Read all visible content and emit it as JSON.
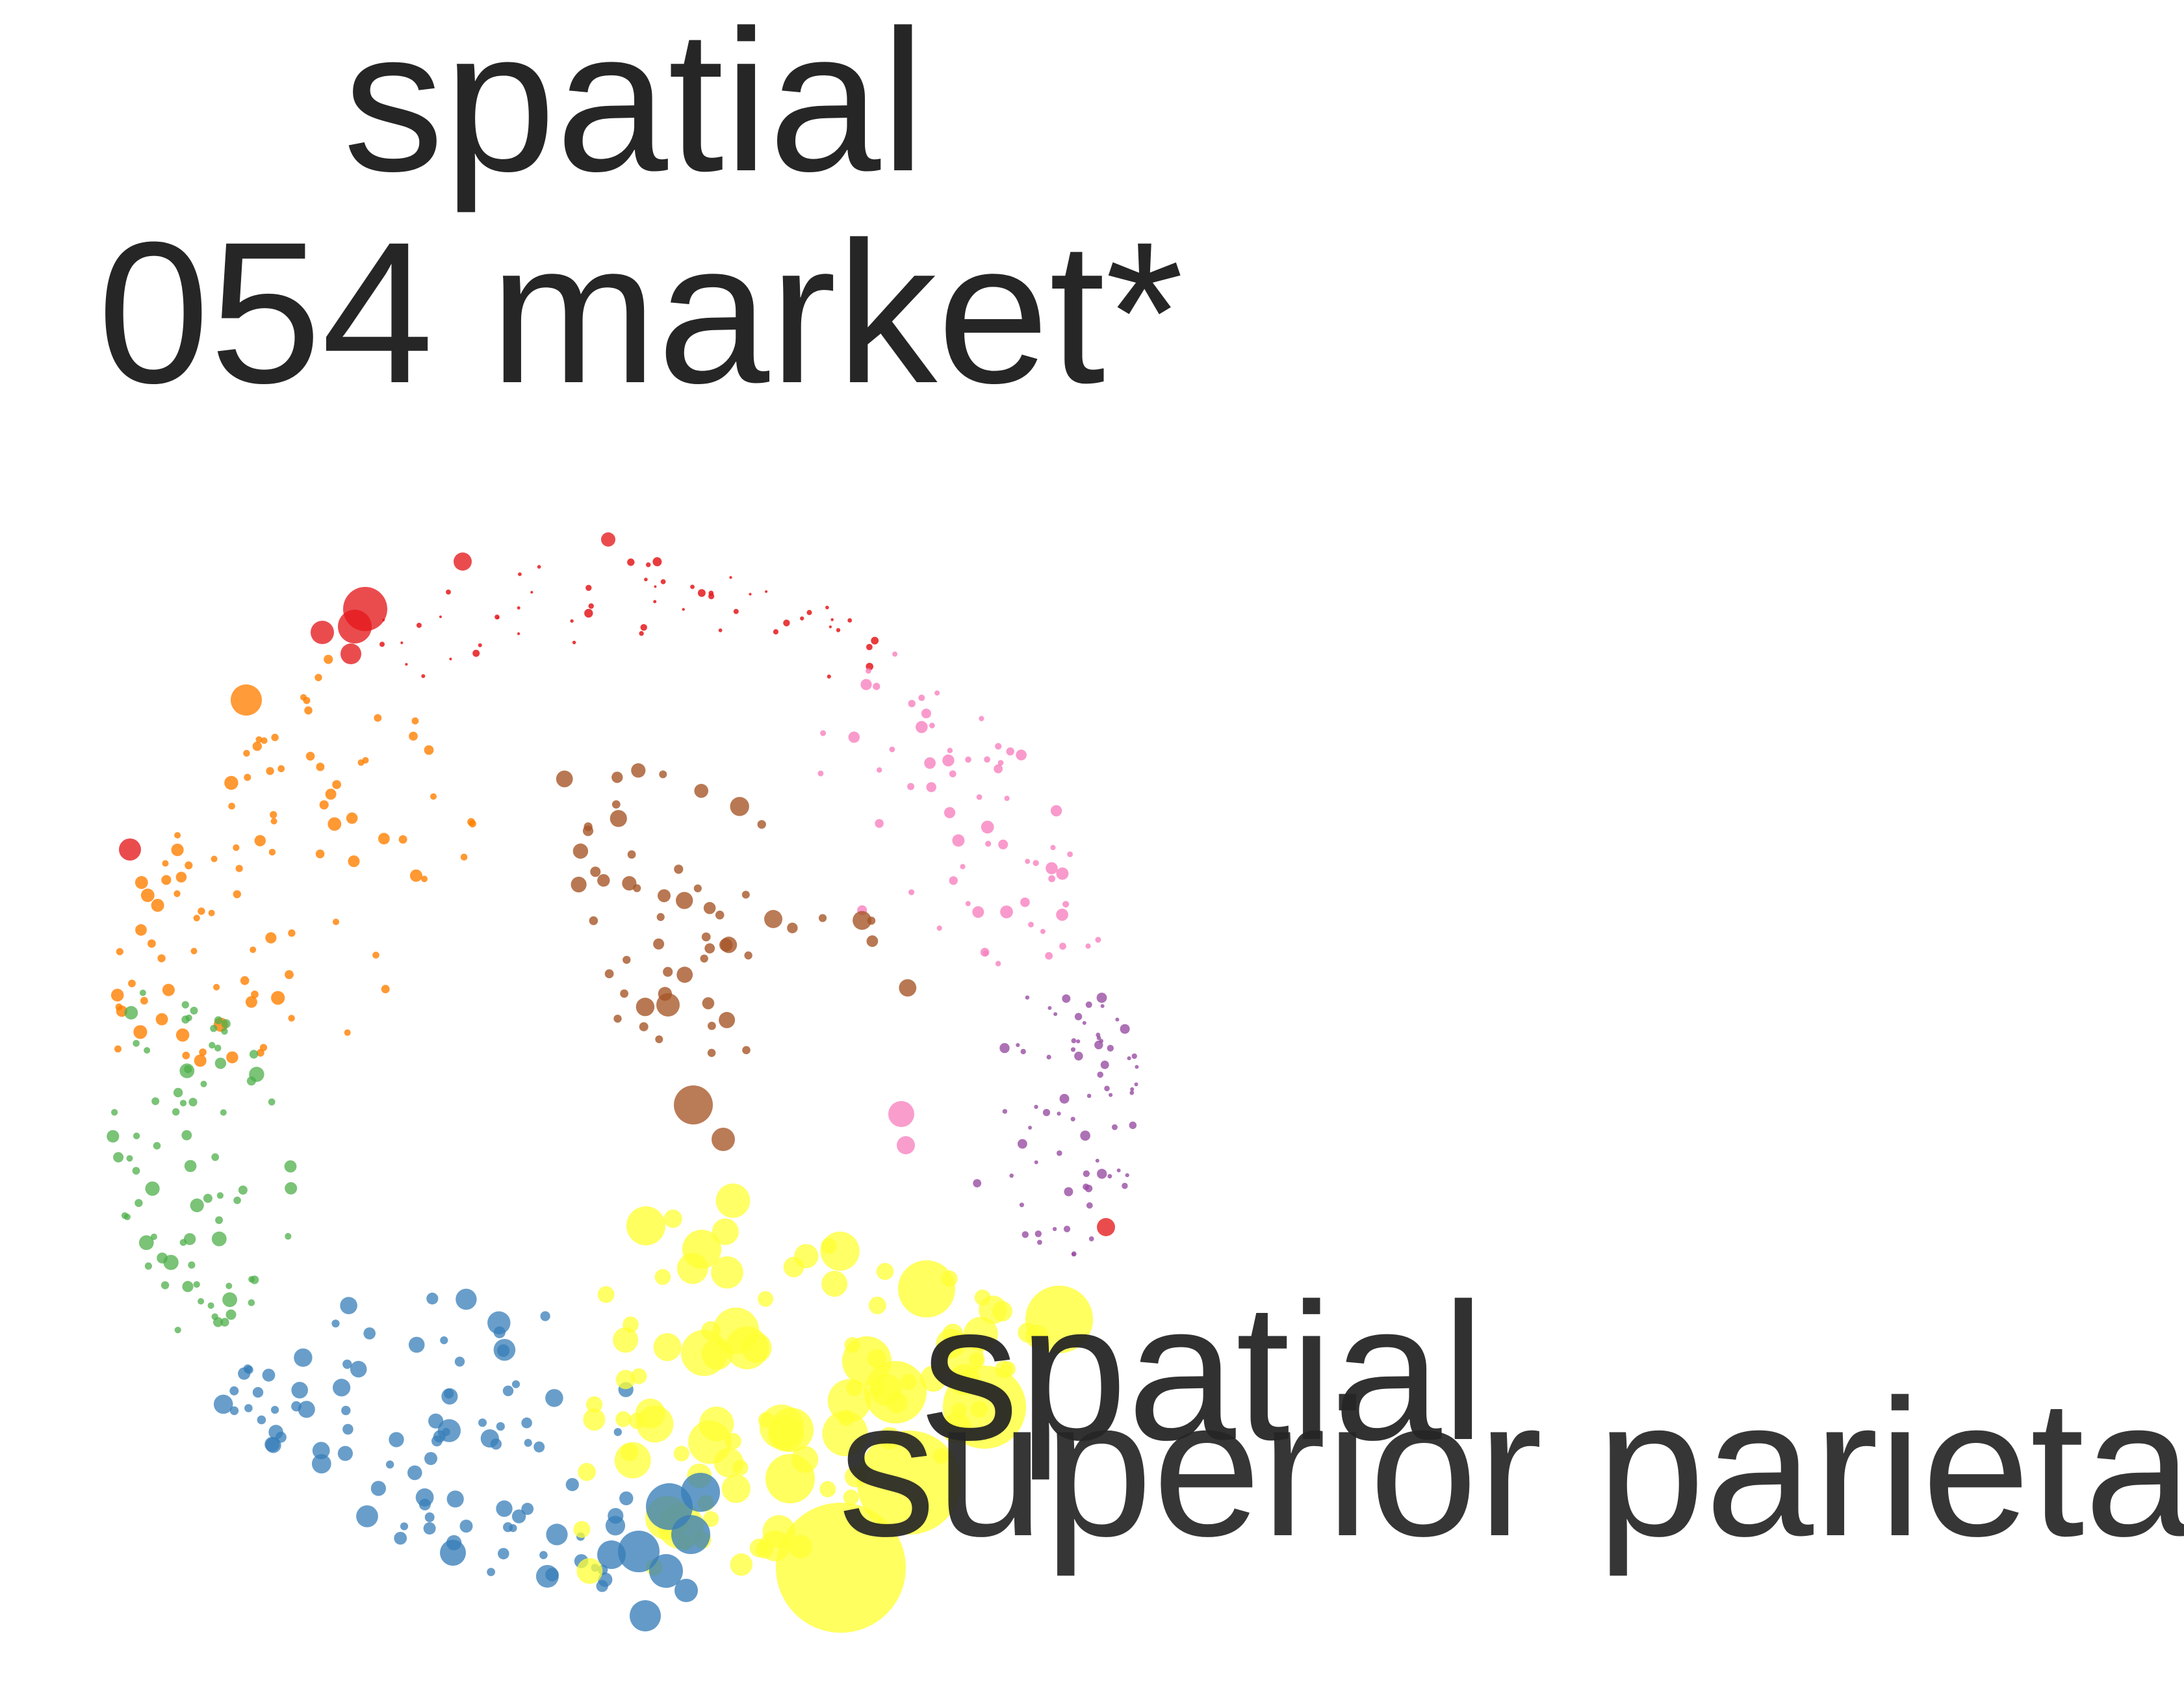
{
  "title_lines": [
    "spatial",
    "054 market*"
  ],
  "cluster_labels": [
    "spatial",
    "superior parietal"
  ],
  "colors": {
    "text": "#262626",
    "red": "#e41a1c",
    "orange": "#ff7f00",
    "green": "#4daf4a",
    "blue": "#377eb8",
    "yellow": "#ffff33",
    "brown": "#a65628",
    "pink": "#f781bf",
    "purple": "#984ea3"
  }
}
